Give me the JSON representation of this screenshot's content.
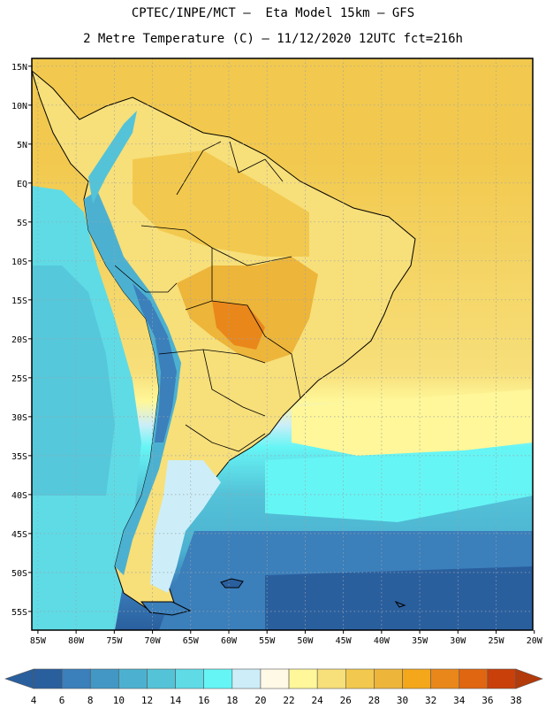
{
  "header": {
    "line1": "CPTEC/INPE/MCT –  Eta Model 15km – GFS",
    "line2": "2 Metre Temperature (C) – 11/12/2020 12UTC fct=216h"
  },
  "map": {
    "lat_labels": [
      "15N",
      "10N",
      "5N",
      "EQ",
      "5S",
      "10S",
      "15S",
      "20S",
      "25S",
      "30S",
      "35S",
      "40S",
      "45S",
      "50S",
      "55S"
    ],
    "lon_labels": [
      "85W",
      "80W",
      "75W",
      "70W",
      "65W",
      "60W",
      "55W",
      "50W",
      "45W",
      "40W",
      "35W",
      "30W",
      "25W",
      "20W"
    ],
    "extent": {
      "lon_min": -85.8,
      "lon_max": -20.2,
      "lat_min": -57.4,
      "lat_max": 16.0
    }
  },
  "colorbar": {
    "labels": [
      "4",
      "6",
      "8",
      "10",
      "12",
      "14",
      "16",
      "18",
      "20",
      "22",
      "24",
      "26",
      "28",
      "30",
      "32",
      "34",
      "36",
      "38"
    ],
    "colors": [
      "#2a5f9e",
      "#3b7fbb",
      "#4397c4",
      "#4cb1d0",
      "#54c3d8",
      "#5fdbe6",
      "#66f5f5",
      "#cdeef8",
      "#fff9e6",
      "#fff799",
      "#f7df7a",
      "#f2c94e",
      "#edb53a",
      "#f4a71a",
      "#e9871b",
      "#e06612",
      "#c9400a"
    ],
    "low_arrow": "#2a5f9e",
    "high_arrow": "#b33a0a"
  }
}
